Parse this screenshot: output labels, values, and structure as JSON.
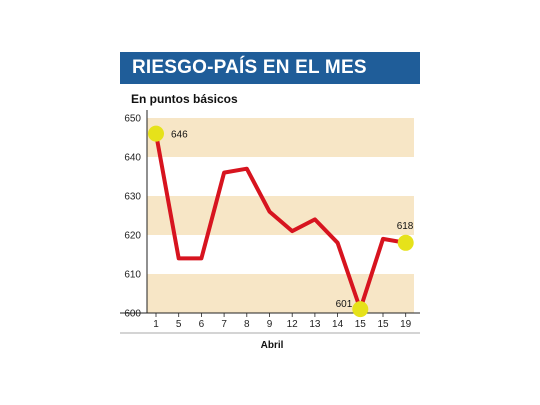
{
  "chart_data": {
    "type": "line",
    "title": "RIESGO-PAÍS EN EL MES",
    "subtitle": "En puntos básicos",
    "xlabel": "Abril",
    "ylabel": "",
    "categories": [
      "1",
      "5",
      "6",
      "7",
      "8",
      "9",
      "12",
      "13",
      "14",
      "15",
      "15",
      "19"
    ],
    "series": [
      {
        "values": [
          646,
          614,
          614,
          636,
          637,
          626,
          621,
          624,
          618,
          601,
          619,
          618
        ]
      }
    ],
    "ylim": [
      600,
      650
    ],
    "yticks": [
      600,
      610,
      620,
      630,
      640,
      650
    ],
    "bands": [
      [
        600,
        610
      ],
      [
        620,
        630
      ],
      [
        640,
        650
      ]
    ],
    "highlights": [
      {
        "index": 0,
        "label": "646"
      },
      {
        "index": 9,
        "label": "601"
      },
      {
        "index": 11,
        "label": "618"
      }
    ],
    "grid": false,
    "colors": {
      "title_bar": "#1f5d99",
      "band": "#f7e6c6",
      "line": "#d7141f",
      "marker": "#e6e21a"
    }
  }
}
